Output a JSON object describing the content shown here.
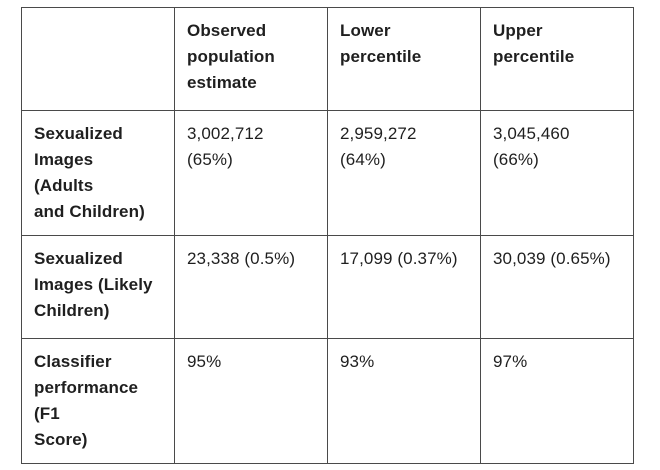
{
  "table": {
    "columns": [
      {
        "id": "row-label",
        "label": ""
      },
      {
        "id": "observed",
        "label": "Observed\npopulation\nestimate"
      },
      {
        "id": "lower",
        "label": "Lower\npercentile"
      },
      {
        "id": "upper",
        "label": "Upper\npercentile"
      }
    ],
    "rows": [
      {
        "label": "Sexualized\nImages\n(Adults\nand Children)",
        "values": [
          "3,002,712\n(65%)",
          "2,959,272\n(64%)",
          "3,045,460\n(66%)"
        ]
      },
      {
        "label": "Sexualized\nImages (Likely\nChildren)",
        "values": [
          "23,338 (0.5%)",
          "17,099 (0.37%)",
          "30,039 (0.65%)"
        ]
      },
      {
        "label": "Classifier\nperformance\n(F1\nScore)",
        "values": [
          "95%",
          "93%",
          "97%"
        ]
      }
    ]
  },
  "colors": {
    "grid_border": "#4a4a4a",
    "text": "#1f1f1f",
    "background": "#ffffff"
  },
  "chart_data": {
    "type": "table",
    "title": "",
    "columns": [
      "",
      "Observed population estimate",
      "Lower percentile",
      "Upper percentile"
    ],
    "rows": [
      [
        "Sexualized Images (Adults and Children)",
        "3,002,712 (65%)",
        "2,959,272 (64%)",
        "3,045,460 (66%)"
      ],
      [
        "Sexualized Images (Likely Children)",
        "23,338 (0.5%)",
        "17,099 (0.37%)",
        "30,039 (0.65%)"
      ],
      [
        "Classifier performance (F1 Score)",
        "95%",
        "93%",
        "97%"
      ]
    ]
  }
}
